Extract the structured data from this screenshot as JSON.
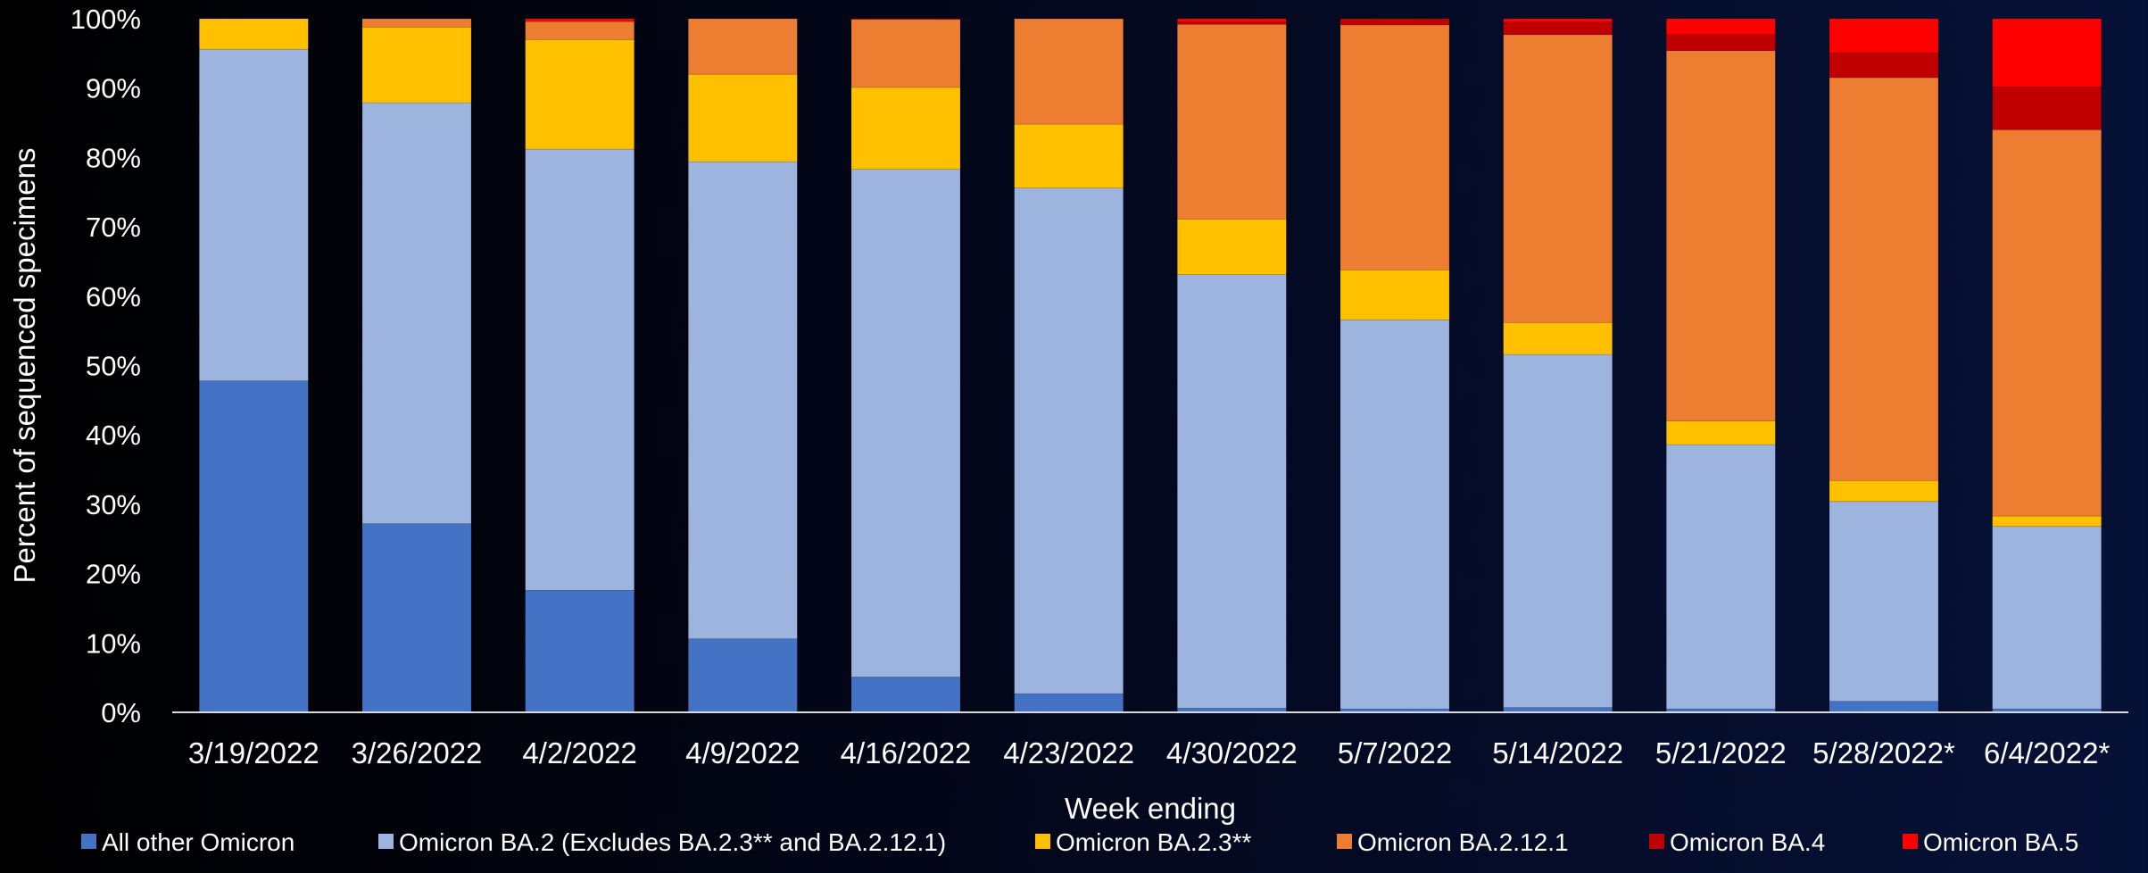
{
  "chart_data": {
    "type": "stacked-bar-100",
    "xlabel": "Week ending",
    "ylabel": "Percent of sequenced specimens",
    "ylim": [
      0,
      100
    ],
    "yticks": [
      "0%",
      "10%",
      "20%",
      "30%",
      "40%",
      "50%",
      "60%",
      "70%",
      "80%",
      "90%",
      "100%"
    ],
    "grid": false,
    "legend_position": "bottom",
    "categories": [
      "3/19/2022",
      "3/26/2022",
      "4/2/2022",
      "4/9/2022",
      "4/16/2022",
      "4/23/2022",
      "4/30/2022",
      "5/7/2022",
      "5/14/2022",
      "5/21/2022",
      "5/28/2022*",
      "6/4/2022*"
    ],
    "series": [
      {
        "name": "All other Omicron",
        "color": "#4472C4",
        "values": [
          47.8,
          27.2,
          17.6,
          10.6,
          5.1,
          2.7,
          0.6,
          0.5,
          0.7,
          0.5,
          1.6,
          0.5
        ]
      },
      {
        "name": "Omicron BA.2 (Excludes BA.2.3** and BA.2.12.1)",
        "color": "#9DB4DF",
        "values": [
          47.8,
          60.7,
          63.6,
          68.8,
          73.2,
          72.9,
          62.5,
          56.1,
          50.9,
          38.1,
          28.8,
          26.3
        ]
      },
      {
        "name": "Omicron BA.2.3**",
        "color": "#FFC000",
        "values": [
          4.4,
          10.9,
          15.8,
          12.6,
          11.8,
          9.2,
          8.0,
          7.2,
          4.6,
          3.4,
          3.0,
          1.5
        ]
      },
      {
        "name": "Omicron BA.2.12.1",
        "color": "#ED7D31",
        "values": [
          0.0,
          1.2,
          2.6,
          8.0,
          9.8,
          15.2,
          28.1,
          35.3,
          41.5,
          53.4,
          58.1,
          55.7
        ]
      },
      {
        "name": "Omicron BA.4",
        "color": "#C00000",
        "values": [
          0.0,
          0.0,
          0.0,
          0.0,
          0.0,
          0.0,
          0.3,
          0.9,
          1.8,
          2.3,
          3.6,
          6.2
        ]
      },
      {
        "name": "Omicron BA.5",
        "color": "#FF0000",
        "values": [
          0.0,
          0.0,
          0.4,
          0.0,
          0.1,
          0.0,
          0.5,
          0.0,
          0.5,
          2.3,
          4.9,
          9.8
        ]
      }
    ]
  }
}
